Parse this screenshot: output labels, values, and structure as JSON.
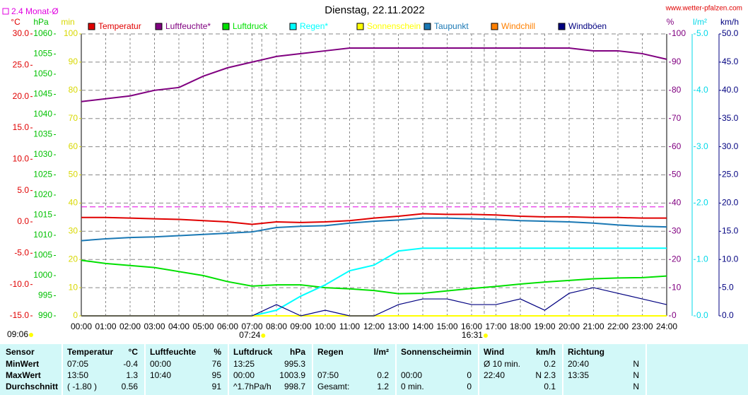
{
  "chart_data": {
    "type": "line",
    "title": "Dienstag, 22.11.2022",
    "site": "www.wetter-pfalzen.com",
    "monthly_average": {
      "value": 2.4,
      "label": "2.4 Monat-Ø",
      "color": "#e000e0",
      "axis": "temp"
    },
    "day_length": "09:06",
    "sunrise": {
      "x": 7.4,
      "label": "07:24"
    },
    "sunset": {
      "x": 16.52,
      "label": "16:31"
    },
    "grid": true,
    "xlim": [
      0,
      24
    ],
    "xticks": [
      {
        "value": 0,
        "label": "00:00"
      },
      {
        "value": 1,
        "label": "01:00"
      },
      {
        "value": 2,
        "label": "02:00"
      },
      {
        "value": 3,
        "label": "03:00"
      },
      {
        "value": 4,
        "label": "04:00"
      },
      {
        "value": 5,
        "label": "05:00"
      },
      {
        "value": 6,
        "label": "06:00"
      },
      {
        "value": 7,
        "label": "07:00"
      },
      {
        "value": 8,
        "label": "08:00"
      },
      {
        "value": 9,
        "label": "09:00"
      },
      {
        "value": 10,
        "label": "10:00"
      },
      {
        "value": 11,
        "label": "11:00"
      },
      {
        "value": 12,
        "label": "12:00"
      },
      {
        "value": 13,
        "label": "13:00"
      },
      {
        "value": 14,
        "label": "14:00"
      },
      {
        "value": 15,
        "label": "15:00"
      },
      {
        "value": 16,
        "label": "16:00"
      },
      {
        "value": 17,
        "label": "17:00"
      },
      {
        "value": 18,
        "label": "18:00"
      },
      {
        "value": 19,
        "label": "19:00"
      },
      {
        "value": 20,
        "label": "20:00"
      },
      {
        "value": 21,
        "label": "21:00"
      },
      {
        "value": 22,
        "label": "22:00"
      },
      {
        "value": 23,
        "label": "23:00"
      },
      {
        "value": 24,
        "label": "24:00"
      }
    ],
    "axes": {
      "temp": {
        "label": "°C",
        "color": "#e00000",
        "ylim": [
          -15,
          30
        ],
        "yticks": [
          {
            "value": -15,
            "label": "-15.0"
          },
          {
            "value": -10,
            "label": "-10.0"
          },
          {
            "value": -5,
            "label": "-5.0"
          },
          {
            "value": 0,
            "label": "0.0"
          },
          {
            "value": 5,
            "label": "5.0"
          },
          {
            "value": 10,
            "label": "10.0"
          },
          {
            "value": 15,
            "label": "15.0"
          },
          {
            "value": 20,
            "label": "20.0"
          },
          {
            "value": 25,
            "label": "25.0"
          },
          {
            "value": 30,
            "label": "30.0"
          }
        ]
      },
      "press": {
        "label": "hPa",
        "color": "#00c000",
        "ylim": [
          990,
          1060
        ],
        "yticks": [
          990,
          995,
          1000,
          1005,
          1010,
          1015,
          1020,
          1025,
          1030,
          1035,
          1040,
          1045,
          1050,
          1055,
          1060
        ]
      },
      "min": {
        "label": "min",
        "color": "#d8d800",
        "ylim": [
          0,
          100
        ],
        "yticks": [
          0,
          10,
          20,
          30,
          40,
          50,
          60,
          70,
          80,
          90,
          100
        ]
      },
      "hum": {
        "label": "%",
        "color": "#800080",
        "ylim": [
          0,
          100
        ],
        "yticks": [
          0,
          10,
          20,
          30,
          40,
          50,
          60,
          70,
          80,
          90,
          100
        ]
      },
      "rain": {
        "label": "l/m²",
        "color": "#00d8e8",
        "ylim": [
          0,
          5
        ],
        "yticks": [
          {
            "value": 0,
            "label": "0.0"
          },
          {
            "value": 1,
            "label": "1.0"
          },
          {
            "value": 2,
            "label": "2.0"
          },
          {
            "value": 3,
            "label": "3.0"
          },
          {
            "value": 4,
            "label": "4.0"
          },
          {
            "value": 5,
            "label": "5.0"
          }
        ]
      },
      "wind": {
        "label": "km/h",
        "color": "#000080",
        "ylim": [
          0,
          50
        ],
        "yticks": [
          {
            "value": 0,
            "label": "0.0"
          },
          {
            "value": 5,
            "label": "5.0"
          },
          {
            "value": 10,
            "label": "10.0"
          },
          {
            "value": 15,
            "label": "15.0"
          },
          {
            "value": 20,
            "label": "20.0"
          },
          {
            "value": 25,
            "label": "25.0"
          },
          {
            "value": 30,
            "label": "30.0"
          },
          {
            "value": 35,
            "label": "35.0"
          },
          {
            "value": 40,
            "label": "40.0"
          },
          {
            "value": 45,
            "label": "45.0"
          },
          {
            "value": 50,
            "label": "50.0"
          }
        ]
      }
    },
    "x": [
      0,
      1,
      2,
      3,
      4,
      5,
      6,
      7,
      8,
      9,
      10,
      11,
      12,
      13,
      14,
      15,
      16,
      17,
      18,
      19,
      20,
      21,
      22,
      23,
      24
    ],
    "series": [
      {
        "name": "Temperatur",
        "color": "#e00000",
        "axis": "temp",
        "values": [
          0.7,
          0.7,
          0.6,
          0.5,
          0.4,
          0.2,
          0,
          -0.4,
          0,
          -0.1,
          0,
          0.2,
          0.6,
          0.9,
          1.3,
          1.2,
          1.2,
          1.1,
          0.9,
          0.8,
          0.8,
          0.7,
          0.7,
          0.6,
          0.6
        ]
      },
      {
        "name": "Luftfeuchte*",
        "color": "#800080",
        "axis": "hum",
        "values": [
          76,
          77,
          78,
          80,
          81,
          85,
          88,
          90,
          92,
          93,
          94,
          95,
          95,
          95,
          95,
          95,
          95,
          95,
          95,
          95,
          95,
          94,
          94,
          93,
          91
        ]
      },
      {
        "name": "Luftdruck",
        "color": "#00e000",
        "axis": "press",
        "values": [
          1003.8,
          1003,
          1002.5,
          1002,
          1001,
          1000,
          998.5,
          997.4,
          997.7,
          997.7,
          997,
          996.7,
          996.3,
          995.5,
          995.6,
          996.2,
          996.8,
          997.3,
          997.9,
          998.4,
          998.8,
          999.2,
          999.4,
          999.5,
          999.9
        ]
      },
      {
        "name": "Regen*",
        "color": "#00ffff",
        "axis": "rain",
        "values": [
          0,
          0,
          0,
          0,
          0,
          0,
          0,
          0,
          0.1,
          0.35,
          0.55,
          0.8,
          0.9,
          1.15,
          1.2,
          1.2,
          1.2,
          1.2,
          1.2,
          1.2,
          1.2,
          1.2,
          1.2,
          1.2,
          1.2
        ]
      },
      {
        "name": "Sonnenschein",
        "color": "#ffff00",
        "axis": "min",
        "values": [
          0,
          0,
          0,
          0,
          0,
          0,
          0,
          0,
          0,
          0,
          0,
          0,
          0,
          0,
          0,
          0,
          0,
          0,
          0,
          0,
          0,
          0,
          0,
          0,
          0
        ]
      },
      {
        "name": "Taupunkt",
        "color": "#1a78b4",
        "axis": "temp",
        "values": [
          -3,
          -2.7,
          -2.5,
          -2.4,
          -2.2,
          -2,
          -1.8,
          -1.6,
          -0.9,
          -0.7,
          -0.6,
          -0.2,
          0.1,
          0.3,
          0.6,
          0.6,
          0.5,
          0.4,
          0.2,
          0.1,
          0,
          -0.2,
          -0.5,
          -0.7,
          -0.8
        ]
      },
      {
        "name": "Windchill",
        "color": "#ff8000",
        "axis": "temp",
        "values": [
          null,
          null,
          null,
          null,
          null,
          null,
          null,
          null,
          null,
          null,
          null,
          null,
          null,
          null,
          null,
          null,
          null,
          null,
          null,
          null,
          null,
          null,
          null,
          null,
          null
        ]
      },
      {
        "name": "Windböen",
        "color": "#000080",
        "axis": "wind",
        "values": [
          0,
          0,
          0,
          0,
          0,
          0,
          0,
          0,
          2,
          0,
          1,
          0,
          0,
          2,
          3,
          3,
          2,
          2,
          3,
          1,
          4,
          5,
          4,
          3,
          2
        ]
      }
    ]
  },
  "table": {
    "header": [
      "Sensor",
      [
        "Temperatur",
        "°C"
      ],
      [
        "Luftfeuchte",
        "%"
      ],
      [
        "Luftdruck",
        "hPa"
      ],
      [
        "Regen",
        "l/m²"
      ],
      [
        "Sonnenschein",
        "min"
      ],
      [
        "Wind",
        "km/h"
      ],
      [
        "Richtung",
        null
      ]
    ],
    "rows": [
      [
        "MinWert",
        [
          "07:05",
          "-0.4"
        ],
        [
          "00:00",
          "76"
        ],
        [
          "13:25",
          "995.3"
        ],
        [
          null,
          null
        ],
        [
          null,
          null
        ],
        [
          "Ø 10 min.",
          "0.2"
        ],
        [
          "20:40",
          "N"
        ]
      ],
      [
        "MaxWert",
        [
          "13:50",
          "1.3"
        ],
        [
          "10:40",
          "95"
        ],
        [
          "00:00",
          "1003.9"
        ],
        [
          "07:50",
          "0.2"
        ],
        [
          "00:00",
          "0"
        ],
        [
          "22:40",
          "N 2.3"
        ],
        [
          "13:35",
          "N"
        ]
      ],
      [
        "Durchschnitt",
        [
          "( -1.80 )",
          "0.56"
        ],
        [
          null,
          "91"
        ],
        [
          "^1.7hPa/h",
          "998.7"
        ],
        [
          "Gesamt:",
          "1.2"
        ],
        [
          "0 min.",
          "0"
        ],
        [
          null,
          "0.1"
        ],
        [
          null,
          "N"
        ]
      ]
    ]
  }
}
